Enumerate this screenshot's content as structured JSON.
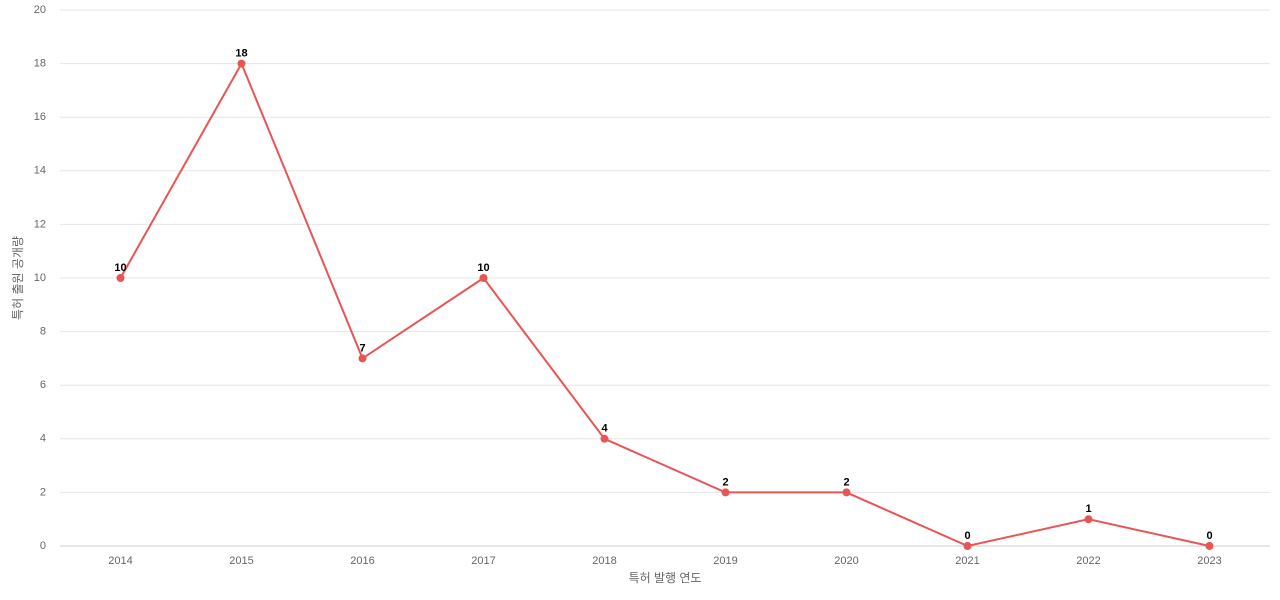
{
  "chart_data": {
    "type": "line",
    "x_label": "특허 발행 연도",
    "y_label": "특허 출원 공개량",
    "categories": [
      "2014",
      "2015",
      "2016",
      "2017",
      "2018",
      "2019",
      "2020",
      "2021",
      "2022",
      "2023"
    ],
    "values": [
      10,
      18,
      7,
      10,
      4,
      2,
      2,
      0,
      1,
      0
    ],
    "color": "#e95454",
    "ylim": [
      0,
      20
    ],
    "yticks": [
      0,
      2,
      4,
      6,
      8,
      10,
      12,
      14,
      16,
      18,
      20
    ],
    "grid": true,
    "data_labels": true
  }
}
